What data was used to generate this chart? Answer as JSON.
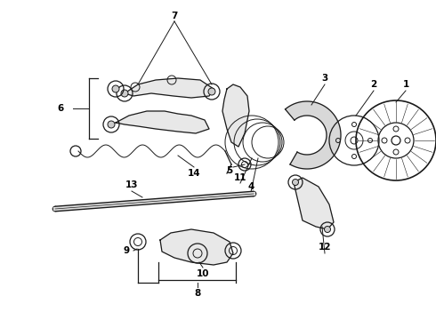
{
  "bg_color": "#ffffff",
  "line_color": "#1a1a1a",
  "figsize": [
    4.9,
    3.6
  ],
  "dpi": 100,
  "xlim": [
    0,
    490
  ],
  "ylim": [
    0,
    360
  ]
}
